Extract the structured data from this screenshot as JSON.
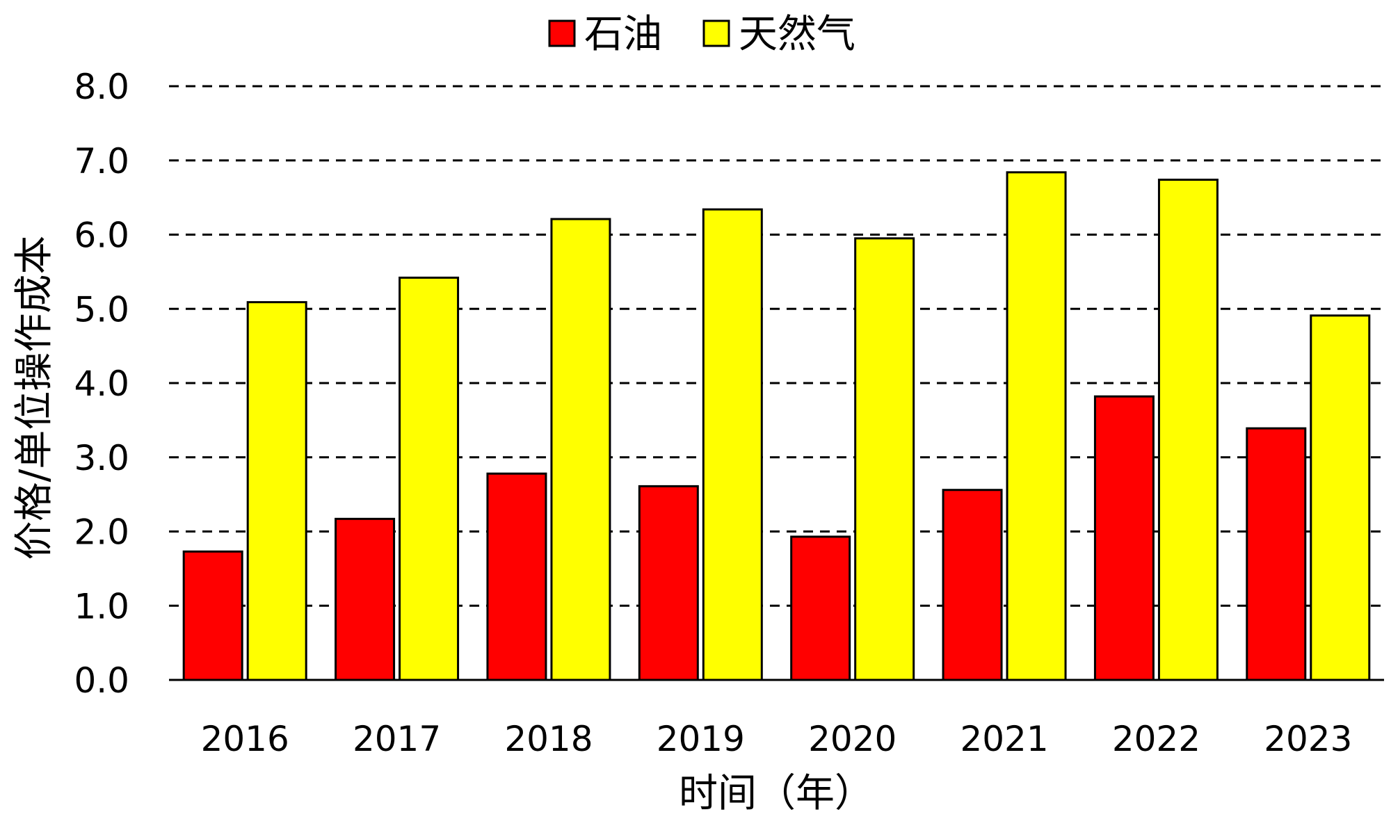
{
  "chart_data": {
    "type": "bar",
    "title": "",
    "xlabel": "时间（年）",
    "ylabel": "价格/单位操作成本",
    "categories": [
      "2016",
      "2017",
      "2018",
      "2019",
      "2020",
      "2021",
      "2022",
      "2023"
    ],
    "series": [
      {
        "name": "石油",
        "color": "#ff0000",
        "values": [
          1.73,
          2.17,
          2.78,
          2.61,
          1.93,
          2.56,
          3.82,
          3.39
        ]
      },
      {
        "name": "天然气",
        "color": "#ffff00",
        "values": [
          5.09,
          5.42,
          6.21,
          6.34,
          5.95,
          6.84,
          6.74,
          4.91
        ]
      }
    ],
    "ylim": [
      0,
      8
    ],
    "yticks": [
      "0.0",
      "1.0",
      "2.0",
      "3.0",
      "4.0",
      "5.0",
      "6.0",
      "7.0",
      "8.0"
    ],
    "grid": "horizontal dashed",
    "legend_position": "top-center"
  }
}
